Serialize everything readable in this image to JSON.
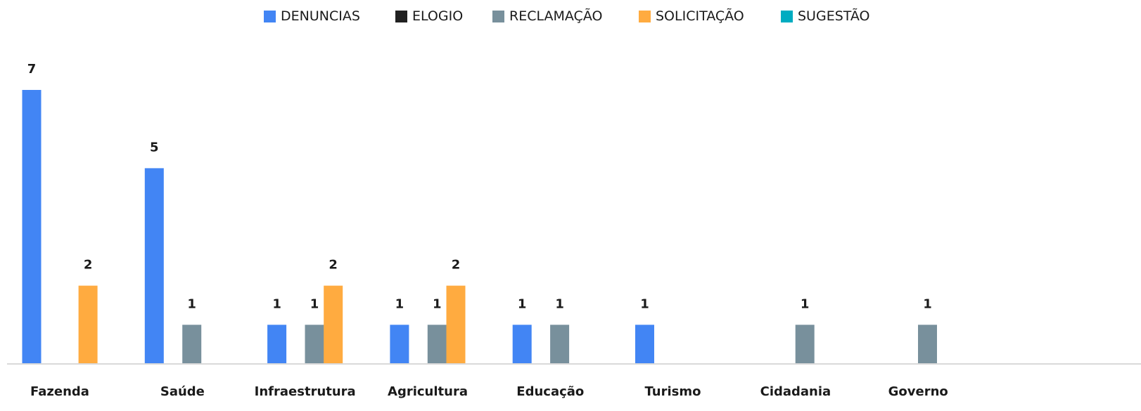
{
  "chart_data": {
    "type": "bar",
    "categories": [
      "Fazenda",
      "Saúde",
      "Infraestrutura",
      "Agricultura",
      "Educação",
      "Turismo",
      "Cidadania",
      "Governo"
    ],
    "series": [
      {
        "name": "DENUNCIAS",
        "color": "#4285F4",
        "values": [
          7,
          5,
          1,
          1,
          1,
          1,
          null,
          null
        ]
      },
      {
        "name": "ELOGIO",
        "color": "#212121",
        "values": [
          null,
          null,
          null,
          null,
          null,
          null,
          null,
          null
        ]
      },
      {
        "name": "RECLAMAÇÃO",
        "color": "#78909C",
        "values": [
          null,
          1,
          1,
          1,
          1,
          null,
          1,
          1
        ]
      },
      {
        "name": "SOLICITAÇÃO",
        "color": "#FFAB40",
        "values": [
          2,
          null,
          2,
          2,
          null,
          null,
          null,
          null
        ]
      },
      {
        "name": "SUGESTÃO",
        "color": "#00ACC1",
        "values": [
          null,
          null,
          null,
          null,
          null,
          null,
          null,
          null
        ]
      }
    ],
    "ylim": [
      0,
      7
    ],
    "grid": false,
    "legend_position": "top",
    "data_labels": true
  }
}
